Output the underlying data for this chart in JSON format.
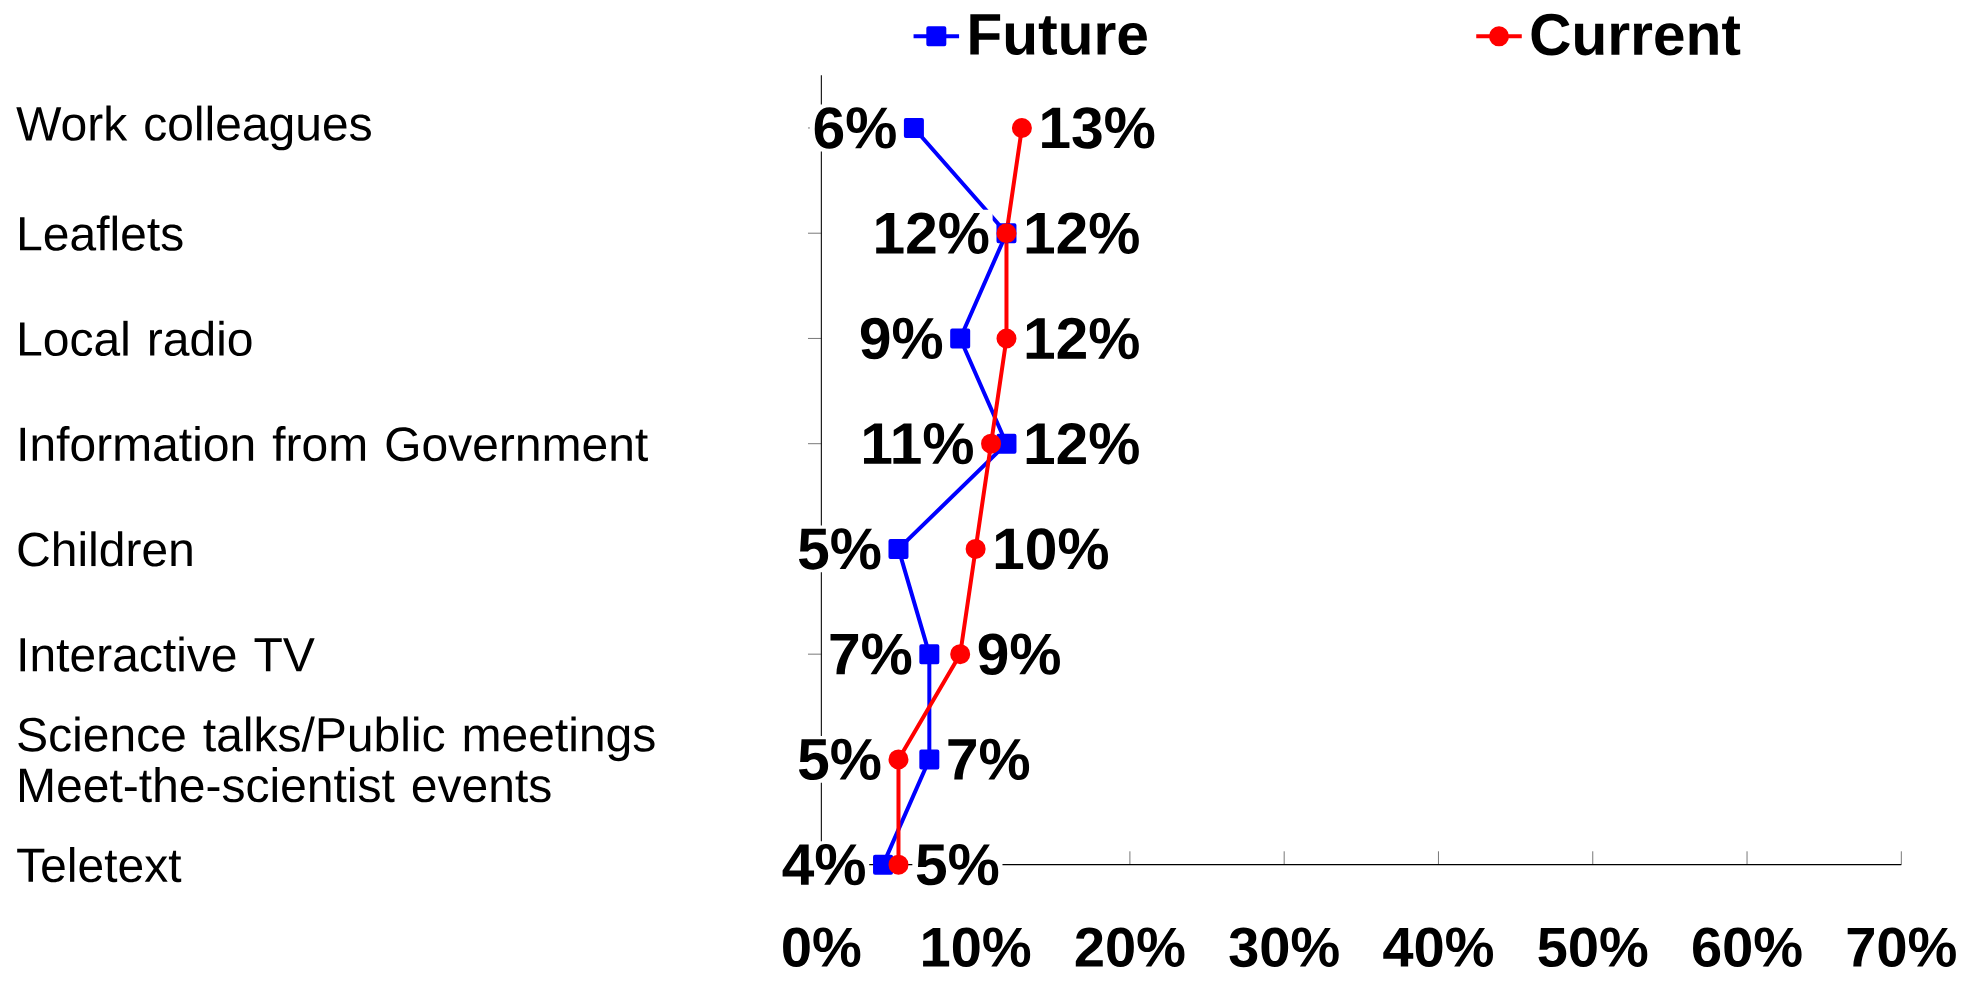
{
  "chart_data": {
    "type": "line",
    "orientation": "horizontal",
    "categories": [
      "Work colleagues",
      "Leaflets",
      "Local radio",
      "Information from Government",
      "Children",
      "Interactive TV",
      "Science talks/Public meetings Meet-the-scientist events",
      "Teletext"
    ],
    "series": [
      {
        "name": "Future",
        "color": "#0000ff",
        "marker": "square",
        "values": [
          6,
          12,
          9,
          12,
          5,
          7,
          7,
          4
        ],
        "value_labels": [
          "6%",
          "12%",
          "9%",
          "12%",
          "5%",
          "7%",
          "7%",
          "4%"
        ]
      },
      {
        "name": "Current",
        "color": "#ff0000",
        "marker": "circle",
        "values": [
          13,
          12,
          12,
          11,
          10,
          9,
          5,
          5
        ],
        "value_labels": [
          "13%",
          "12%",
          "12%",
          "11%",
          "10%",
          "9%",
          "5%",
          "5%"
        ]
      }
    ],
    "xlim": [
      0,
      70
    ],
    "xticks": [
      {
        "value": 0,
        "label": "0%"
      },
      {
        "value": 10,
        "label": "10%"
      },
      {
        "value": 20,
        "label": "20%"
      },
      {
        "value": 30,
        "label": "30%"
      },
      {
        "value": 40,
        "label": "40%"
      },
      {
        "value": 50,
        "label": "50%"
      },
      {
        "value": 60,
        "label": "60%"
      },
      {
        "value": 70,
        "label": "70%"
      }
    ],
    "legend": "top"
  }
}
